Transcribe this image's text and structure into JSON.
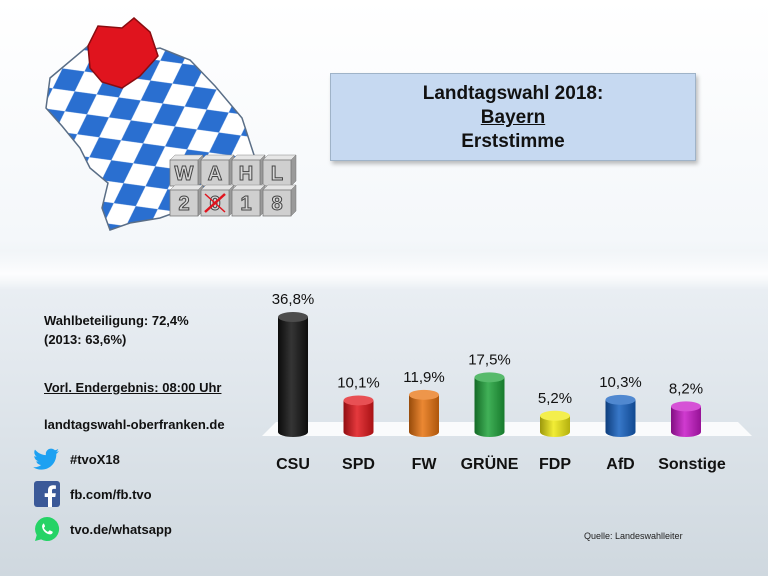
{
  "title": {
    "line1": "Landtagswahl 2018:",
    "line2": "Bayern",
    "line3": "Erststimme"
  },
  "logo": {
    "row1": [
      "W",
      "A",
      "H",
      "L"
    ],
    "row2": [
      "2",
      "0",
      "1",
      "8"
    ]
  },
  "info": {
    "turnout": "Wahlbeteiligung: 72,4%",
    "turnout_prev": "(2013: 63,6%)",
    "result_time": "Vorl. Endergebnis: 08:00 Uhr",
    "website": "landtagswahl-oberfranken.de"
  },
  "social": [
    {
      "icon": "twitter-icon",
      "label": "#tvoX18",
      "color": "#1da1f2"
    },
    {
      "icon": "facebook-icon",
      "label": "fb.com/fb.tvo",
      "color": "#3b5998"
    },
    {
      "icon": "whatsapp-icon",
      "label": "tvo.de/whatsapp",
      "color": "#25d366"
    }
  ],
  "source": "Quelle: Landeswahlleiter",
  "chart_data": {
    "type": "bar",
    "categories": [
      "CSU",
      "SPD",
      "FW",
      "GRÜNE",
      "FDP",
      "AfD",
      "Sonstige"
    ],
    "values": [
      36.8,
      10.1,
      11.9,
      17.5,
      5.2,
      10.3,
      8.2
    ],
    "labels": [
      "36,8%",
      "10,1%",
      "11,9%",
      "17,5%",
      "5,2%",
      "10,3%",
      "8,2%"
    ],
    "colors": [
      "#111111",
      "#e0161b",
      "#e8730f",
      "#1fa33a",
      "#f0ea12",
      "#1560c0",
      "#c818c8"
    ],
    "ylim": [
      0,
      36.8
    ],
    "grid": false,
    "legend": "none"
  }
}
